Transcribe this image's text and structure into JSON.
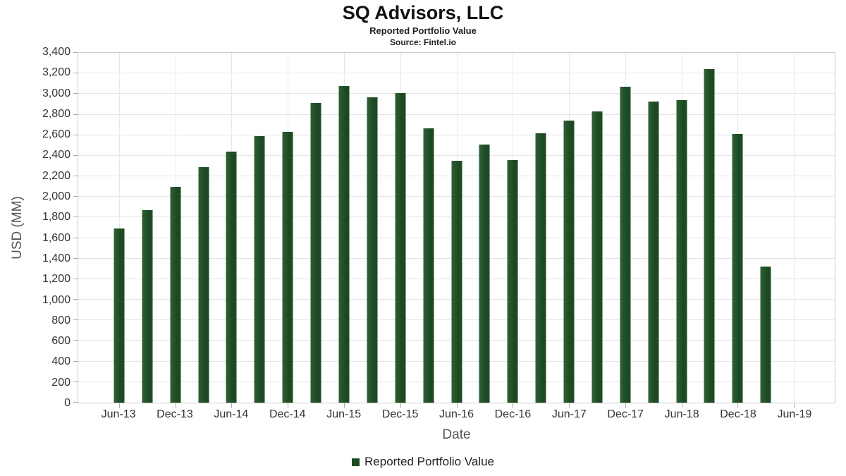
{
  "chart_data": {
    "type": "bar",
    "title": "SQ Advisors, LLC",
    "subtitle": "Reported Portfolio Value",
    "source": "Source: Fintel.io",
    "xlabel": "Date",
    "ylabel": "USD (MM)",
    "ylim": [
      0,
      3400
    ],
    "ytick_step": 200,
    "grid": true,
    "legend_position": "bottom",
    "legend_label": "Reported Portfolio Value",
    "bar_color": "#1d4a22",
    "bar_color_light": "#2f6134",
    "x_tick_labels": [
      "Jun-13",
      "Dec-13",
      "Jun-14",
      "Dec-14",
      "Jun-15",
      "Dec-15",
      "Jun-16",
      "Dec-16",
      "Jun-17",
      "Dec-17",
      "Jun-18",
      "Dec-18",
      "Jun-19"
    ],
    "categories": [
      "Jun-13",
      "Sep-13",
      "Dec-13",
      "Mar-14",
      "Jun-14",
      "Sep-14",
      "Dec-14",
      "Mar-15",
      "Jun-15",
      "Sep-15",
      "Dec-15",
      "Mar-16",
      "Jun-16",
      "Sep-16",
      "Dec-16",
      "Mar-17",
      "Jun-17",
      "Sep-17",
      "Dec-17",
      "Mar-18",
      "Jun-18",
      "Sep-18",
      "Dec-18",
      "Mar-19"
    ],
    "values": [
      1690,
      1870,
      2100,
      2290,
      2440,
      2590,
      2630,
      2910,
      3080,
      2970,
      3010,
      2670,
      2350,
      2510,
      2360,
      2620,
      2740,
      2830,
      3070,
      2930,
      2940,
      3240,
      2610,
      1320
    ]
  }
}
